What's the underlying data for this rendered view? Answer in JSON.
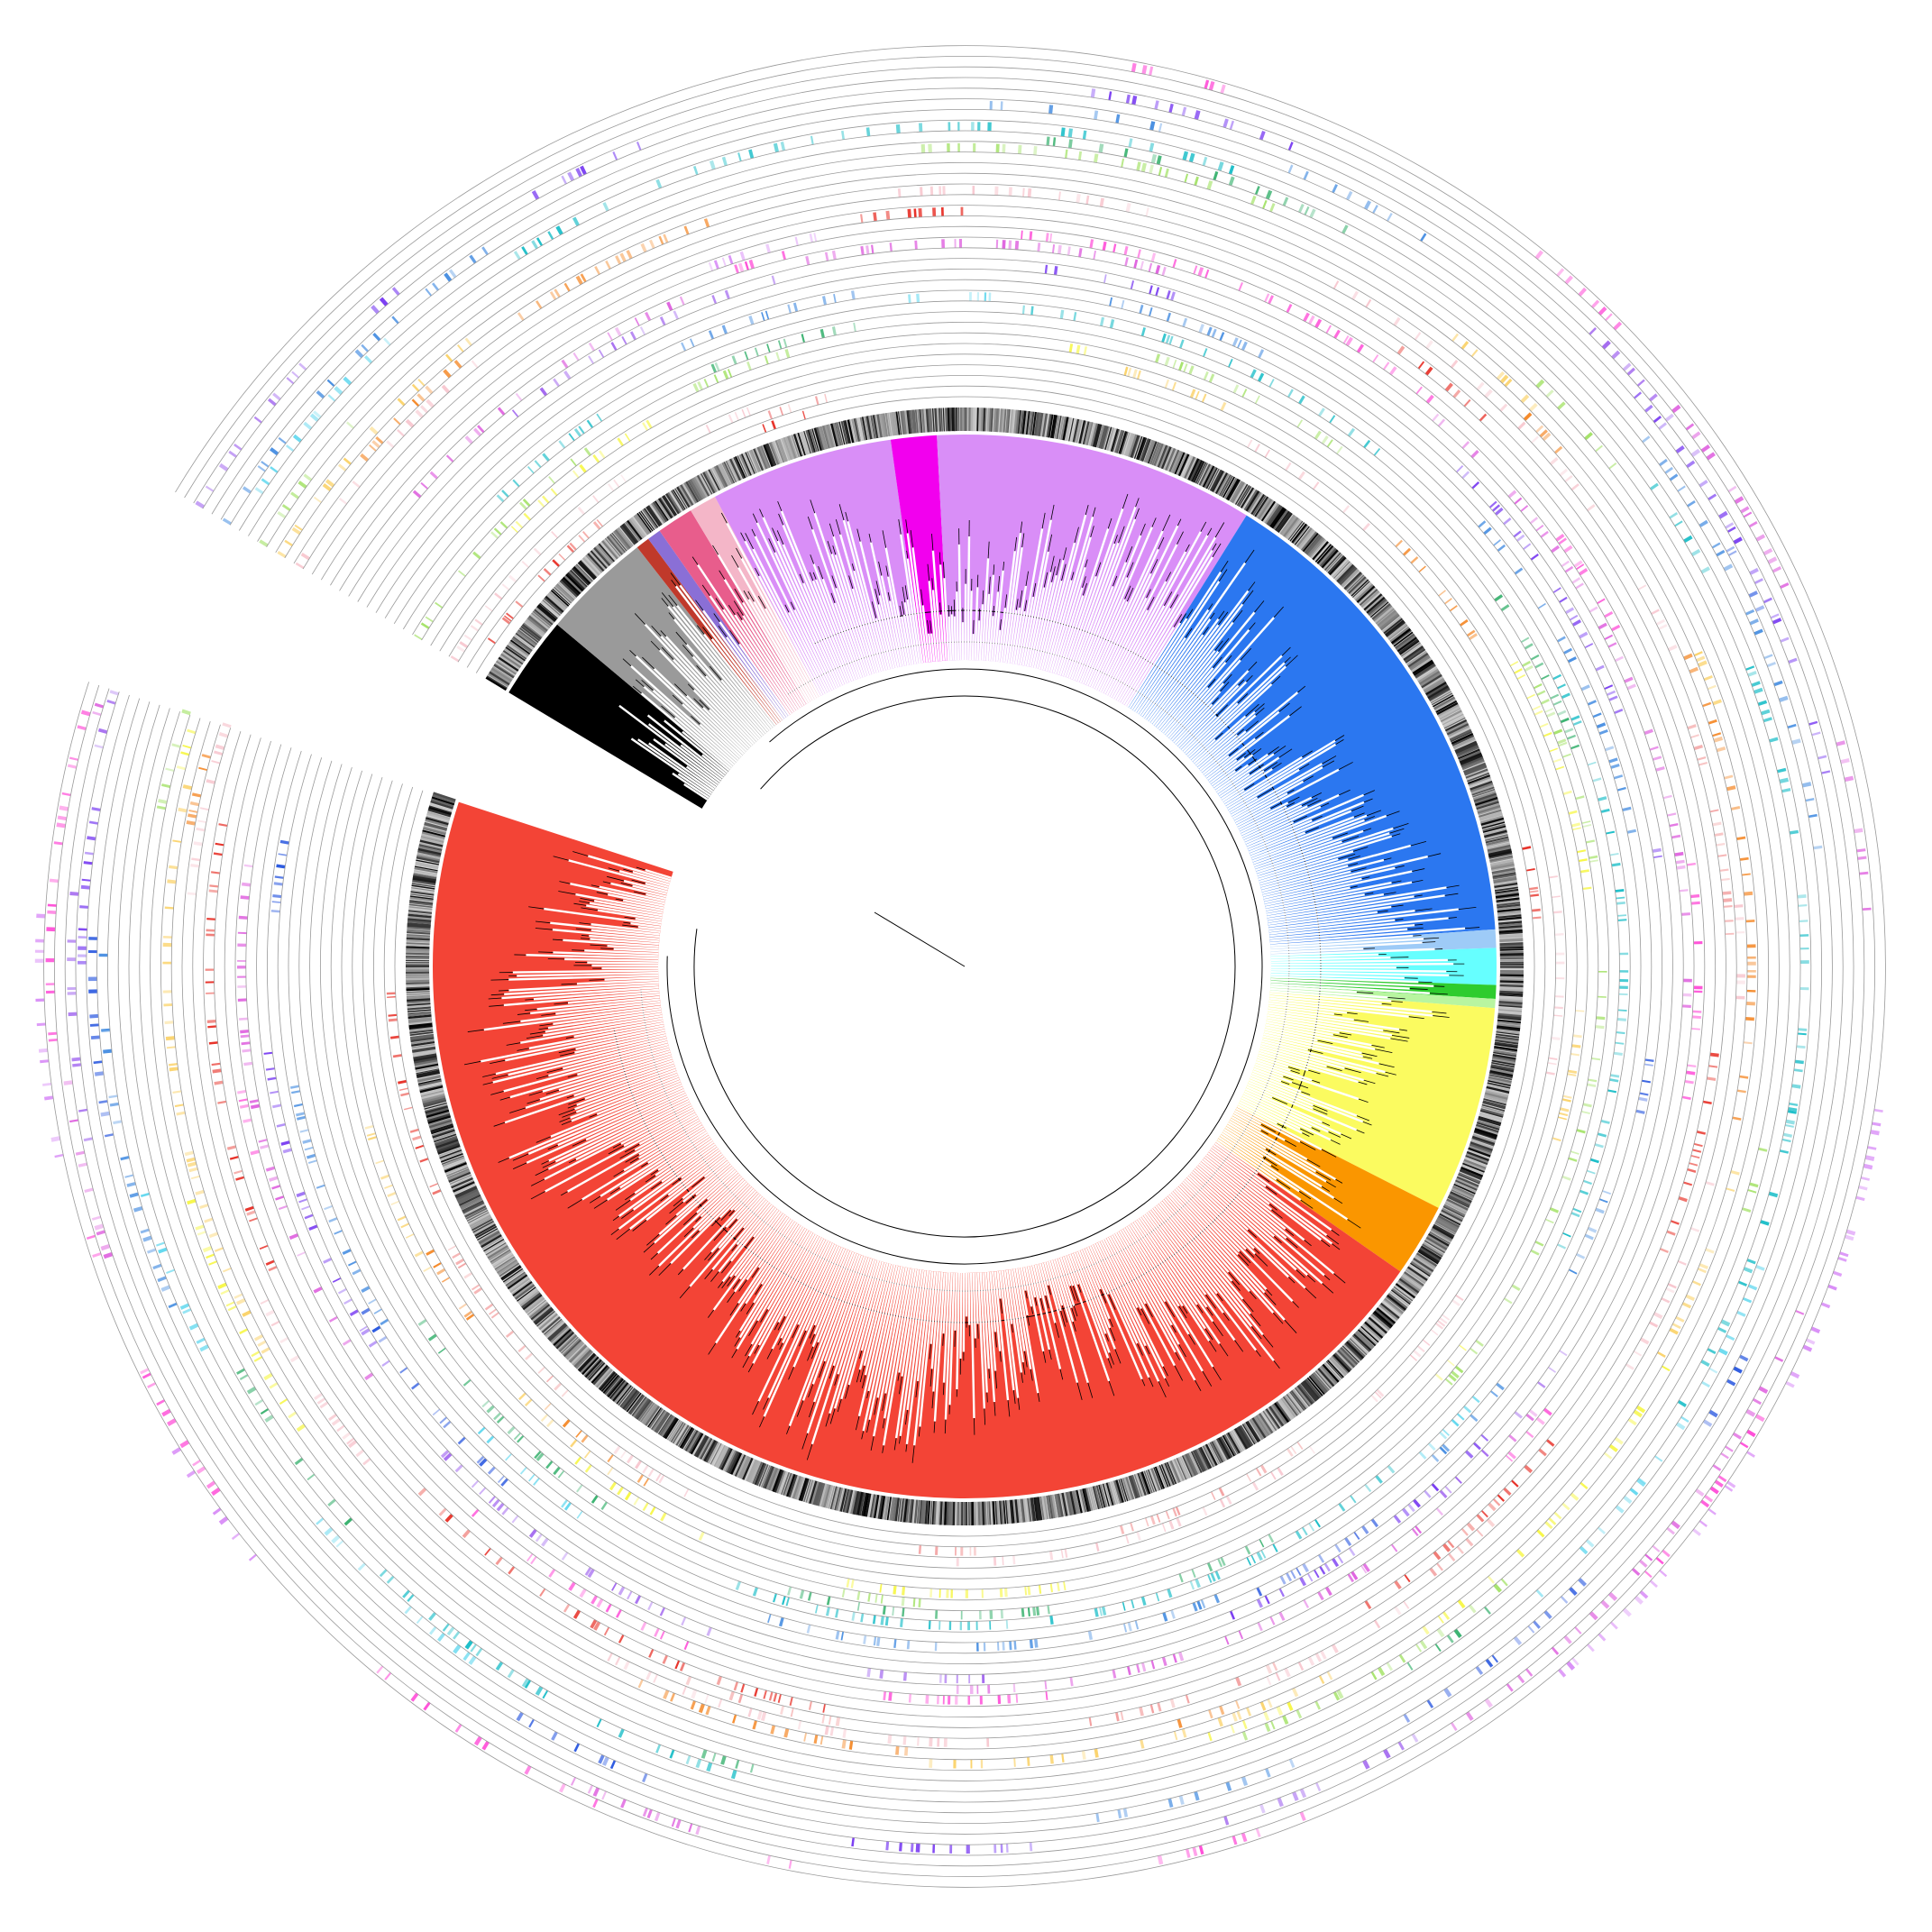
{
  "figure": {
    "type": "circular-phylogenetic-tree",
    "labels_visible": false,
    "background": "#ffffff",
    "tree_color": "#000000",
    "open_gap": {
      "start_deg": 198,
      "end_deg": 211
    },
    "clades": [
      {
        "id": "black",
        "color": "#000000",
        "start_deg": 211,
        "end_deg": 220
      },
      {
        "id": "grey",
        "color": "#9a9a9a",
        "start_deg": 220,
        "end_deg": 232
      },
      {
        "id": "red-thin",
        "color": "#c0392b",
        "start_deg": 232,
        "end_deg": 233.5
      },
      {
        "id": "violet-thin",
        "color": "#8a6fd6",
        "start_deg": 233.5,
        "end_deg": 235
      },
      {
        "id": "rose",
        "color": "#e85d8c",
        "start_deg": 235,
        "end_deg": 239
      },
      {
        "id": "pink",
        "color": "#f4b6c8",
        "start_deg": 239,
        "end_deg": 242
      },
      {
        "id": "lilac",
        "color": "#d98ef7",
        "start_deg": 242,
        "end_deg": 262
      },
      {
        "id": "magenta",
        "color": "#f200ee",
        "start_deg": 262,
        "end_deg": 267
      },
      {
        "id": "lilac-large",
        "color": "#d98ef7",
        "start_deg": 267,
        "end_deg": 302
      },
      {
        "id": "blue",
        "color": "#2b77f0",
        "start_deg": 302,
        "end_deg": 356
      },
      {
        "id": "light-blue",
        "color": "#9ecbf7",
        "start_deg": 356,
        "end_deg": 358
      },
      {
        "id": "cyan",
        "color": "#66ffff",
        "start_deg": 358,
        "end_deg": 362
      },
      {
        "id": "green",
        "color": "#2ecc2e",
        "start_deg": 362,
        "end_deg": 363.5
      },
      {
        "id": "light-green",
        "color": "#b8f5a0",
        "start_deg": 363.5,
        "end_deg": 364.5
      },
      {
        "id": "yellow",
        "color": "#fbfb60",
        "start_deg": 364.5,
        "end_deg": 387
      },
      {
        "id": "orange",
        "color": "#fa9600",
        "start_deg": 387,
        "end_deg": 395
      },
      {
        "id": "red-large",
        "color": "#f34436",
        "start_deg": 395,
        "end_deg": 558
      }
    ],
    "strip_palette": [
      "#e8332a",
      "#f3a0a0",
      "#f8c8d0",
      "#f58b2c",
      "#fbd36b",
      "#f7f74a",
      "#a6e36b",
      "#3cb371",
      "#1fbfc9",
      "#66d9ef",
      "#4a90e2",
      "#2c5ae0",
      "#7b3ff2",
      "#a56cf0",
      "#e066e0",
      "#ff4fd8",
      "#d98ef7"
    ],
    "ring_count": 34
  }
}
